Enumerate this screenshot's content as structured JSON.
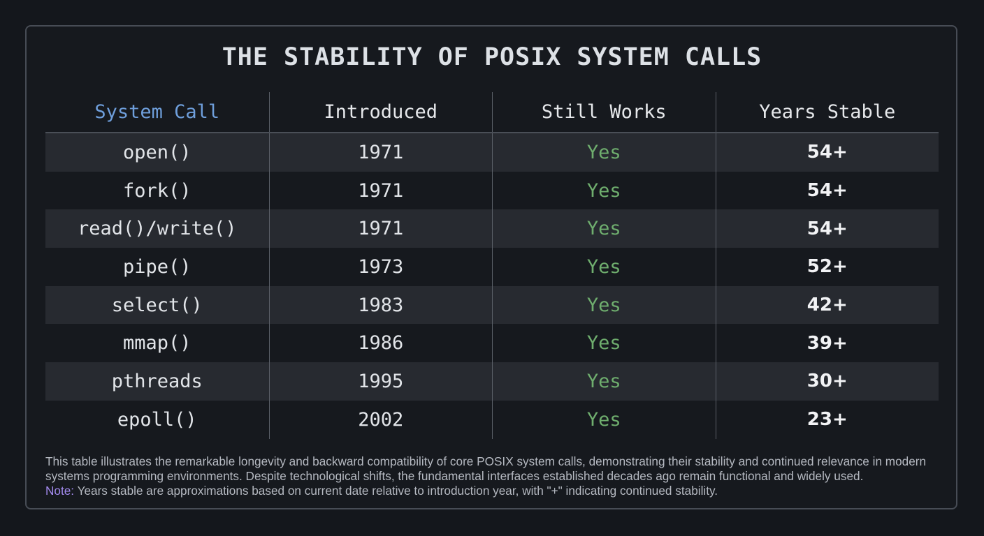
{
  "title": "THE STABILITY OF POSIX SYSTEM CALLS",
  "table": {
    "headers": [
      "System Call",
      "Introduced",
      "Still Works",
      "Years Stable"
    ],
    "rows": [
      [
        "open()",
        "1971",
        "Yes",
        "54+"
      ],
      [
        "fork()",
        "1971",
        "Yes",
        "54+"
      ],
      [
        "read()/write()",
        "1971",
        "Yes",
        "54+"
      ],
      [
        "pipe()",
        "1973",
        "Yes",
        "52+"
      ],
      [
        "select()",
        "1983",
        "Yes",
        "42+"
      ],
      [
        "mmap()",
        "1986",
        "Yes",
        "39+"
      ],
      [
        "pthreads",
        "1995",
        "Yes",
        "30+"
      ],
      [
        "epoll()",
        "2002",
        "Yes",
        "23+"
      ]
    ]
  },
  "footer": {
    "description": "This table illustrates the remarkable longevity and backward compatibility of core POSIX system calls, demonstrating their stability and continued relevance in modern systems programming environments. Despite technological shifts, the fundamental interfaces established decades ago remain functional and widely used.",
    "note_label": "Note:",
    "note_text": "Years stable are approximations based on current date relative to introduction year, with \"+\" indicating continued stability."
  }
}
